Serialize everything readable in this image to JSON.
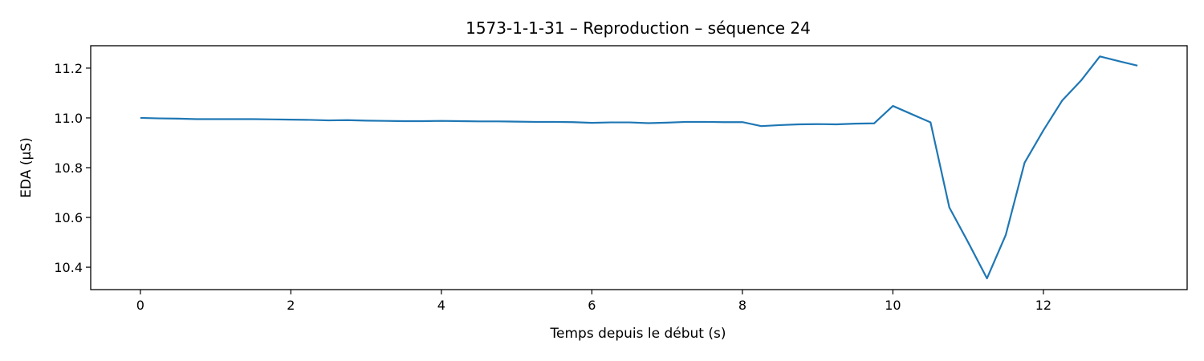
{
  "chart_data": {
    "type": "line",
    "title": "1573-1-1-31 – Reproduction – séquence 24",
    "xlabel": "Temps depuis le début (s)",
    "ylabel": "EDA (µS)",
    "xlim": [
      -0.66,
      13.91
    ],
    "ylim": [
      10.31,
      11.29
    ],
    "xticks": [
      0,
      2,
      4,
      6,
      8,
      10,
      12
    ],
    "xtick_labels": [
      "0",
      "2",
      "4",
      "6",
      "8",
      "10",
      "12"
    ],
    "yticks": [
      10.4,
      10.6,
      10.8,
      11.0,
      11.2
    ],
    "ytick_labels": [
      "10.4",
      "10.6",
      "10.8",
      "11.0",
      "11.2"
    ],
    "grid": false,
    "series": [
      {
        "color": "#1f77b4",
        "x": [
          0,
          0.25,
          0.5,
          0.75,
          1.0,
          1.25,
          1.5,
          1.75,
          2.0,
          2.25,
          2.5,
          2.75,
          3.0,
          3.25,
          3.5,
          3.75,
          4.0,
          4.25,
          4.5,
          4.75,
          5.0,
          5.25,
          5.5,
          5.75,
          6.0,
          6.25,
          6.5,
          6.75,
          7.0,
          7.25,
          7.5,
          7.75,
          8.0,
          8.25,
          8.5,
          8.75,
          9.0,
          9.25,
          9.5,
          9.75,
          10.0,
          10.25,
          10.5,
          10.75,
          11.0,
          11.25,
          11.5,
          11.75,
          12.0,
          12.25,
          12.5,
          12.75,
          13.0,
          13.25
        ],
        "y": [
          11.0,
          10.998,
          10.997,
          10.995,
          10.995,
          10.995,
          10.995,
          10.994,
          10.993,
          10.992,
          10.99,
          10.991,
          10.989,
          10.988,
          10.987,
          10.987,
          10.988,
          10.987,
          10.986,
          10.986,
          10.985,
          10.984,
          10.984,
          10.983,
          10.98,
          10.982,
          10.982,
          10.979,
          10.981,
          10.984,
          10.984,
          10.983,
          10.983,
          10.967,
          10.971,
          10.974,
          10.975,
          10.974,
          10.977,
          10.978,
          11.048,
          11.015,
          10.982,
          10.64,
          10.5,
          10.355,
          10.53,
          10.82,
          10.95,
          11.07,
          11.15,
          11.247,
          11.228,
          11.21
        ]
      }
    ]
  }
}
